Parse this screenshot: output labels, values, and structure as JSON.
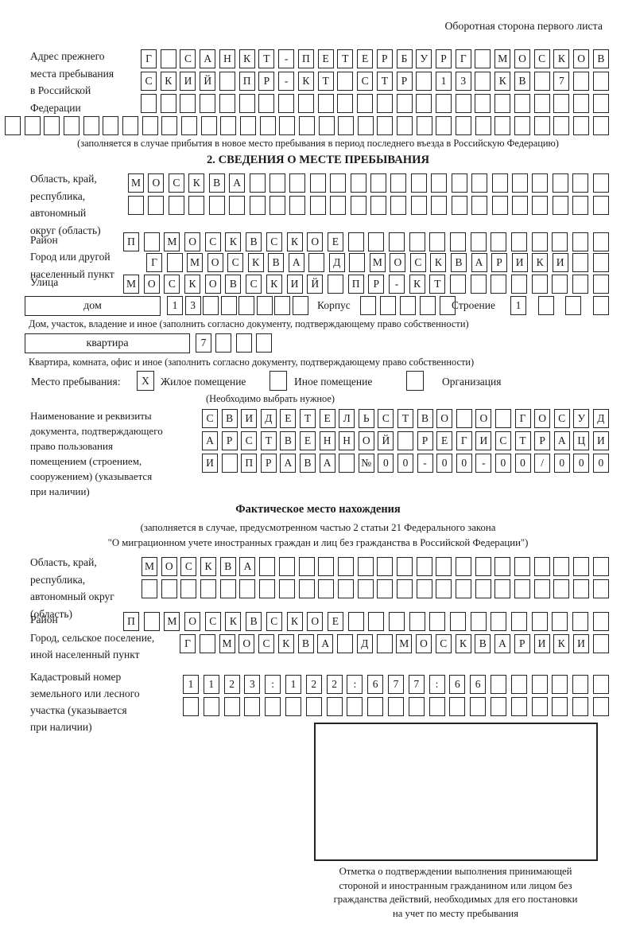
{
  "page": {
    "header": "Оборотная сторона первого листа"
  },
  "colors": {
    "ink": "#1a1a1a",
    "box_border": "#242424",
    "background": "#ffffff"
  },
  "prev_address": {
    "label_lines": [
      "Адрес прежнего",
      "места пребывания",
      "в Российской",
      "Федерации"
    ],
    "rows": [
      "Г САНКТ-ПЕТЕРБУРГ МОСКОВ",
      "СКИЙ ПР-КТ СТР 13 КВ 7  ",
      "                        ",
      "                               "
    ],
    "note": "(заполняется в случае прибытия в новое место пребывания в период последнего въезда в Российскую Федерацию)"
  },
  "section2": {
    "title": "2. СВЕДЕНИЯ О МЕСТЕ ПРЕБЫВАНИЯ",
    "region": {
      "label_lines": [
        "Область, край,",
        "республика,",
        "автономный",
        "округ (область)"
      ],
      "rows": [
        "МОСКВА                  ",
        "                        "
      ]
    },
    "district": {
      "label": "Район",
      "row": "П МОСКВСКОЕ             "
    },
    "city": {
      "label_lines": [
        "Город или другой",
        "населенный пункт"
      ],
      "row": "Г МОСКВА Д МОСКВАРИКИ  "
    },
    "street": {
      "label": "Улица",
      "row": "МОСКОВСКИЙ ПР-КТ        "
    },
    "house": {
      "box_label": "дом",
      "cells": "13      ",
      "korpus_label": "Корпус",
      "korpus_cells": "     ",
      "stroenie_label": "Строение",
      "stroenie_cells": "1   ",
      "caption": "Дом, участок, владение и иное (заполнить согласно документу, подтверждающему право собственности)"
    },
    "flat": {
      "box_label": "квартира",
      "cells": "7   ",
      "caption": "Квартира, комната, офис и иное (заполнить согласно документу, подтверждающему право собственности)"
    },
    "stay_type": {
      "label": "Место пребывания:",
      "options": [
        {
          "label": "Жилое помещение",
          "mark": "X"
        },
        {
          "label": "Иное помещение",
          "mark": ""
        },
        {
          "label": "Организация",
          "mark": ""
        }
      ],
      "note": "(Необходимо выбрать нужное)"
    },
    "doc": {
      "label_lines": [
        "Наименование и реквизиты",
        "документа, подтверждающего",
        "право пользования",
        "помещением (строением,",
        "сооружением) (указывается",
        "при наличии)"
      ],
      "rows": [
        "СВИДЕТЕЛЬСТВО О ГОСУД",
        "АРСТВЕННОЙ РЕГИСТРАЦИ",
        "И ПРАВА №00-00-00/000"
      ]
    }
  },
  "actual_location": {
    "title": "Фактическое место нахождения",
    "note_lines": [
      "(заполняется в случае, предусмотренном частью 2 статьи 21 Федерального закона",
      "\"О миграционном учете иностранных граждан и лиц без гражданства в Российской Федерации\")"
    ],
    "region": {
      "label_lines": [
        "Область, край,",
        "республика,",
        "автономный округ",
        "(область)"
      ],
      "rows": [
        "МОСКВА                  ",
        "                        "
      ]
    },
    "district": {
      "label": "Район",
      "row": "П МОСКВСКОЕ             "
    },
    "city": {
      "label_lines": [
        "Город, сельское поселение,",
        "иной населенный пункт"
      ],
      "row": "Г МОСКВА Д МОСКВАРИКИ "
    },
    "cadastre": {
      "label_lines": [
        "Кадастровый номер",
        "земельного или лесного",
        "участка (указывается",
        "при наличии)"
      ],
      "rows": [
        "1123:122:677:66      ",
        "                     "
      ]
    },
    "mark": {
      "caption_lines": [
        "Отметка о подтверждении выполнения принимающей",
        "стороной и иностранным гражданином или лицом без",
        "гражданства действий, необходимых для его постановки",
        "на учет по месту пребывания"
      ]
    }
  }
}
